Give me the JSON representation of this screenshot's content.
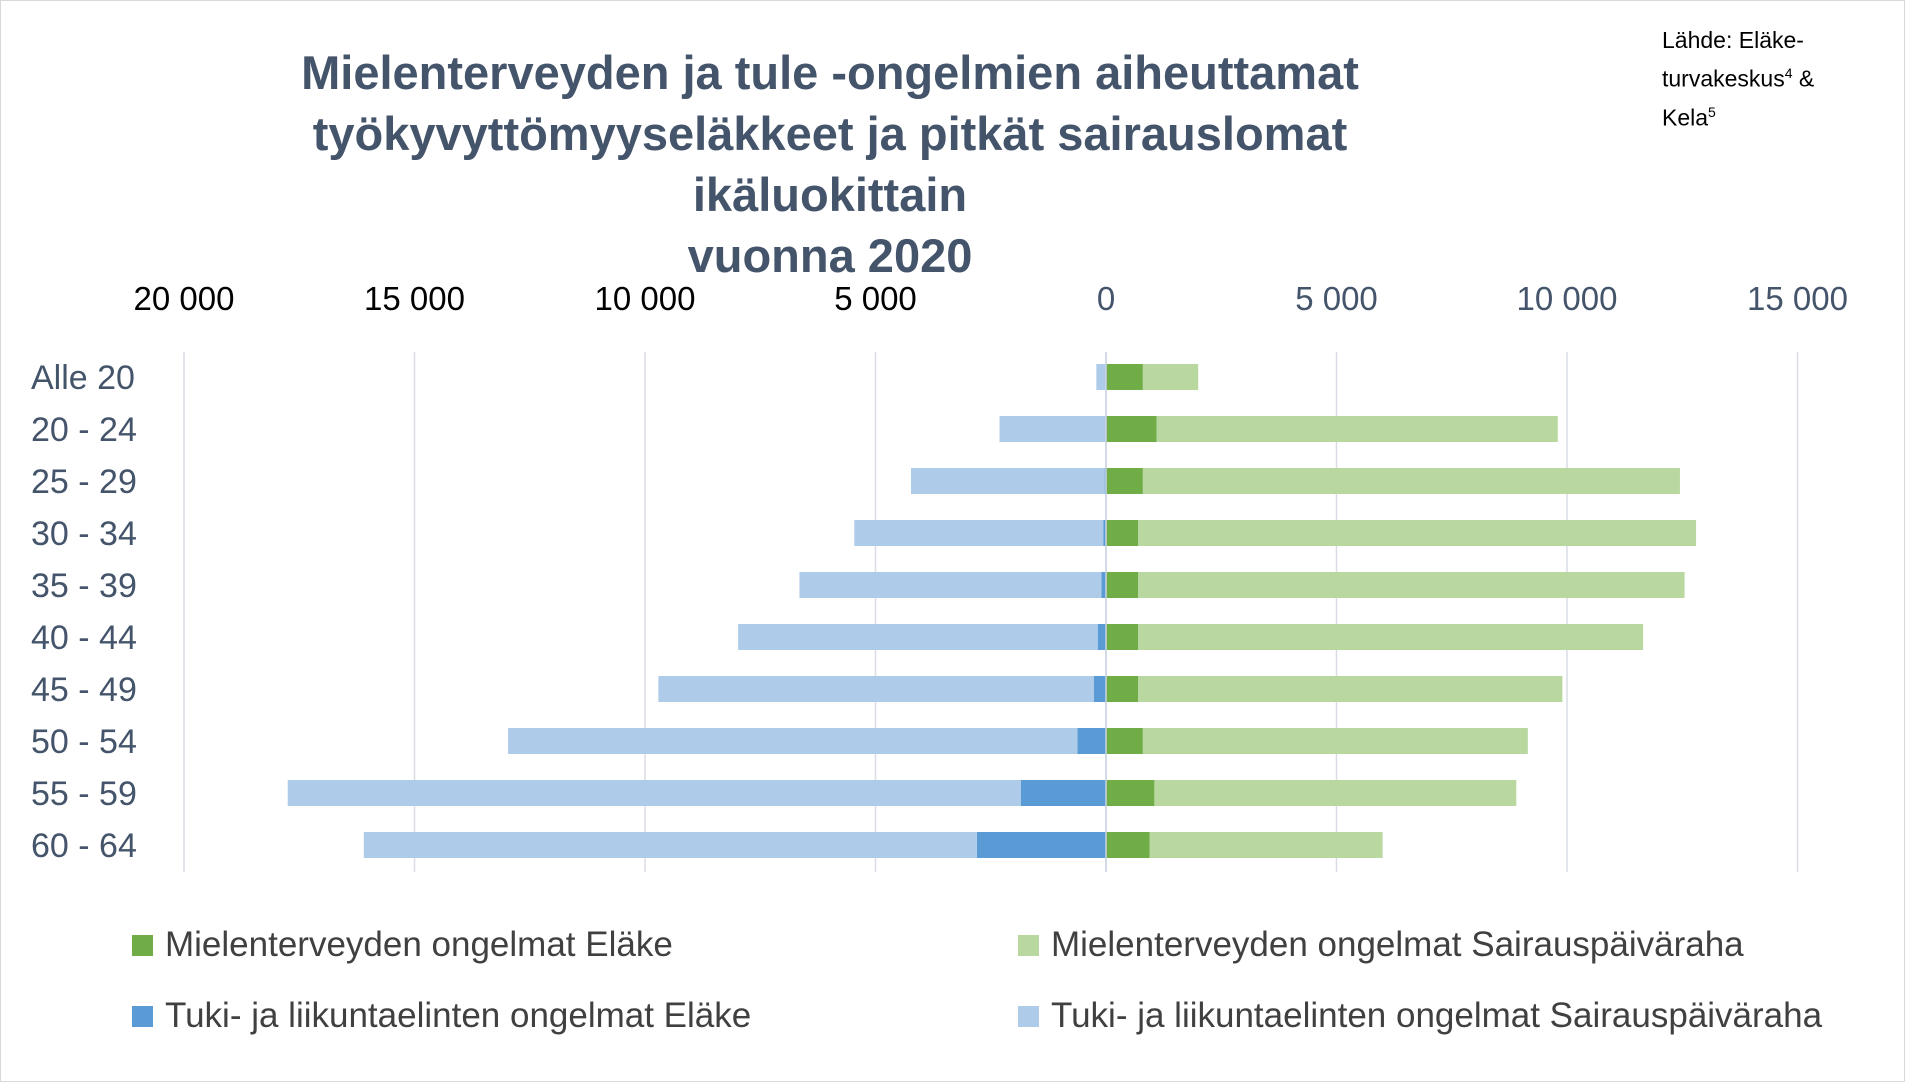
{
  "title_lines": [
    "Mielenterveyden ja tule -ongelmien aiheuttamat",
    "työkyvyttömyyseläkkeet ja pitkät sairauslomat ikäluokittain",
    "vuonna 2020"
  ],
  "source_lines": [
    "Lähde: Eläke-",
    "turvakeskus",
    "Kela"
  ],
  "source_superscripts": [
    "4",
    "5"
  ],
  "source_joiner": " & ",
  "colors": {
    "mental_pension": "#70ad47",
    "mental_sickness": "#b8d8a0",
    "musculo_pension": "#5b9bd5",
    "musculo_sickness": "#aecbea",
    "title": "#44546a",
    "left_ticks": "#000000",
    "right_ticks": "#44546a",
    "grid": "#d9dde6"
  },
  "chart_data": {
    "type": "bar",
    "orientation": "horizontal",
    "layout": "diverging-stacked",
    "categories": [
      "Alle 20",
      "20 - 24",
      "25 - 29",
      "30 - 34",
      "35 - 39",
      "40 - 44",
      "45 - 49",
      "50 - 54",
      "55 - 59",
      "60 - 64"
    ],
    "left_axis": {
      "ticks": [
        20000,
        15000,
        10000,
        5000
      ],
      "tick_labels": [
        "20 000",
        "15 000",
        "10 000",
        "5 000"
      ],
      "max": 20000
    },
    "right_axis": {
      "ticks": [
        0,
        5000,
        10000,
        15000
      ],
      "tick_labels": [
        "0",
        "5 000",
        "10 000",
        "15 000"
      ],
      "max": 15000
    },
    "series": [
      {
        "name": "Mielenterveyden ongelmat Eläke",
        "side": "right",
        "color": "#70ad47",
        "values": [
          800,
          1100,
          800,
          700,
          700,
          700,
          700,
          800,
          1050,
          950
        ]
      },
      {
        "name": "Mielenterveyden ongelmat Sairauspäiväraha",
        "side": "right",
        "color": "#b8d8a0",
        "values": [
          1200,
          8700,
          11650,
          12100,
          11850,
          10950,
          9200,
          8350,
          7850,
          5050
        ]
      },
      {
        "name": "Tuki- ja liikuntaelinten ongelmat Eläke",
        "side": "left",
        "color": "#5b9bd5",
        "values": [
          10,
          10,
          30,
          60,
          100,
          180,
          260,
          620,
          1850,
          2800
        ]
      },
      {
        "name": "Tuki- ja liikuntaelinten ongelmat Sairauspäiväraha",
        "side": "left",
        "color": "#aecbea",
        "values": [
          200,
          2300,
          4200,
          5400,
          6550,
          7800,
          9450,
          12350,
          15900,
          13300
        ]
      }
    ],
    "legend": "bottom",
    "grid": true
  }
}
